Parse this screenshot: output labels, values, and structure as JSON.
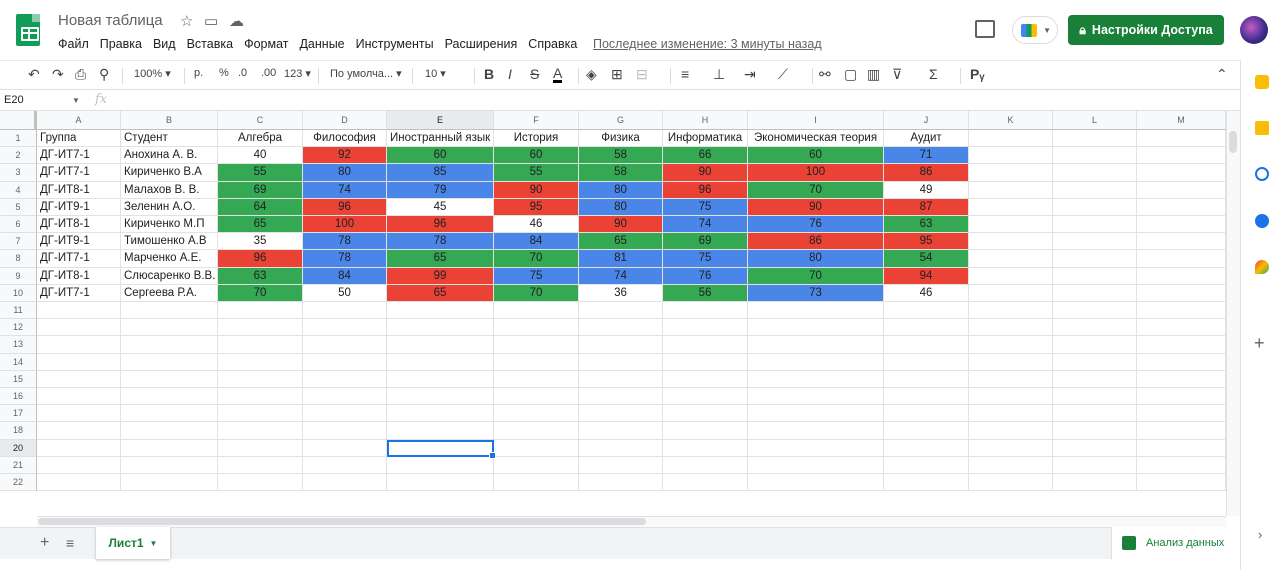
{
  "header": {
    "title": "Новая таблица",
    "last_edit": "Последнее изменение: 3 минуты назад",
    "share_label": "Настройки Доступа",
    "share_icon": "lock-icon"
  },
  "menu": [
    "Файл",
    "Правка",
    "Вид",
    "Вставка",
    "Формат",
    "Данные",
    "Инструменты",
    "Расширения",
    "Справка"
  ],
  "toolbar": {
    "zoom": "100%",
    "currency": "р.",
    "percent": "%",
    "dec_less": ".0",
    "dec_more": ".00",
    "format_more": "123",
    "font": "По умолча...",
    "font_size": "10"
  },
  "formula_bar": {
    "name_box": "E20",
    "fx": "fx"
  },
  "columns": [
    "A",
    "B",
    "C",
    "D",
    "E",
    "F",
    "G",
    "H",
    "I",
    "J",
    "K",
    "L",
    "M"
  ],
  "rows": [
    "1",
    "2",
    "3",
    "4",
    "5",
    "6",
    "7",
    "8",
    "9",
    "10",
    "11",
    "12",
    "13",
    "14",
    "15",
    "16",
    "17",
    "18",
    "20",
    "21",
    "22"
  ],
  "table": {
    "headers": [
      "Группа",
      "Студент",
      "Алгебра",
      "Философия",
      "Иностранный язык",
      "История",
      "Физика",
      "Информатика",
      "Экономическая теория",
      "Аудит"
    ],
    "rows": [
      [
        "ДГ-ИТ7-1",
        "Анохина А. В.",
        "40",
        "92",
        "60",
        "60",
        "58",
        "66",
        "60",
        "71"
      ],
      [
        "ДГ-ИТ7-1",
        "Кириченко В.А",
        "55",
        "80",
        "85",
        "55",
        "58",
        "90",
        "100",
        "86"
      ],
      [
        "ДГ-ИТ8-1",
        "Малахов В. В.",
        "69",
        "74",
        "79",
        "90",
        "80",
        "96",
        "70",
        "49"
      ],
      [
        "ДГ-ИТ9-1",
        "Зеленин А.О.",
        "64",
        "96",
        "45",
        "95",
        "80",
        "75",
        "90",
        "87"
      ],
      [
        "ДГ-ИТ8-1",
        "Кириченко М.П",
        "65",
        "100",
        "96",
        "46",
        "90",
        "74",
        "76",
        "63"
      ],
      [
        "ДГ-ИТ9-1",
        "Тимошенко А.В",
        "35",
        "78",
        "78",
        "84",
        "65",
        "69",
        "86",
        "95"
      ],
      [
        "ДГ-ИТ7-1",
        "Марченко А.Е.",
        "96",
        "78",
        "65",
        "70",
        "81",
        "75",
        "80",
        "54"
      ],
      [
        "ДГ-ИТ8-1",
        "Слюсаренко В.В.",
        "63",
        "84",
        "99",
        "75",
        "74",
        "76",
        "70",
        "94"
      ],
      [
        "ДГ-ИТ7-1",
        "Сергеева Р.А.",
        "70",
        "50",
        "65",
        "70",
        "36",
        "56",
        "73",
        "46"
      ]
    ],
    "fills": [
      [
        "w",
        "r",
        "g",
        "g",
        "g",
        "g",
        "g",
        "b"
      ],
      [
        "g",
        "b",
        "b",
        "g",
        "g",
        "r",
        "r",
        "r"
      ],
      [
        "g",
        "b",
        "b",
        "r",
        "b",
        "r",
        "g",
        "w"
      ],
      [
        "g",
        "r",
        "w",
        "r",
        "b",
        "b",
        "r",
        "r"
      ],
      [
        "g",
        "r",
        "r",
        "w",
        "r",
        "b",
        "b",
        "g"
      ],
      [
        "w",
        "b",
        "b",
        "b",
        "g",
        "g",
        "r",
        "r"
      ],
      [
        "r",
        "b",
        "g",
        "g",
        "b",
        "b",
        "b",
        "g"
      ],
      [
        "g",
        "b",
        "r",
        "b",
        "b",
        "b",
        "g",
        "r"
      ],
      [
        "g",
        "w",
        "r",
        "g",
        "w",
        "g",
        "b",
        "w"
      ]
    ]
  },
  "colors": {
    "green": "#34a853",
    "red": "#ea4335",
    "blue": "#4a86e8",
    "brand": "#188038"
  },
  "sheet": {
    "tab_label": "Лист1",
    "explore_label": "Анализ данных"
  }
}
